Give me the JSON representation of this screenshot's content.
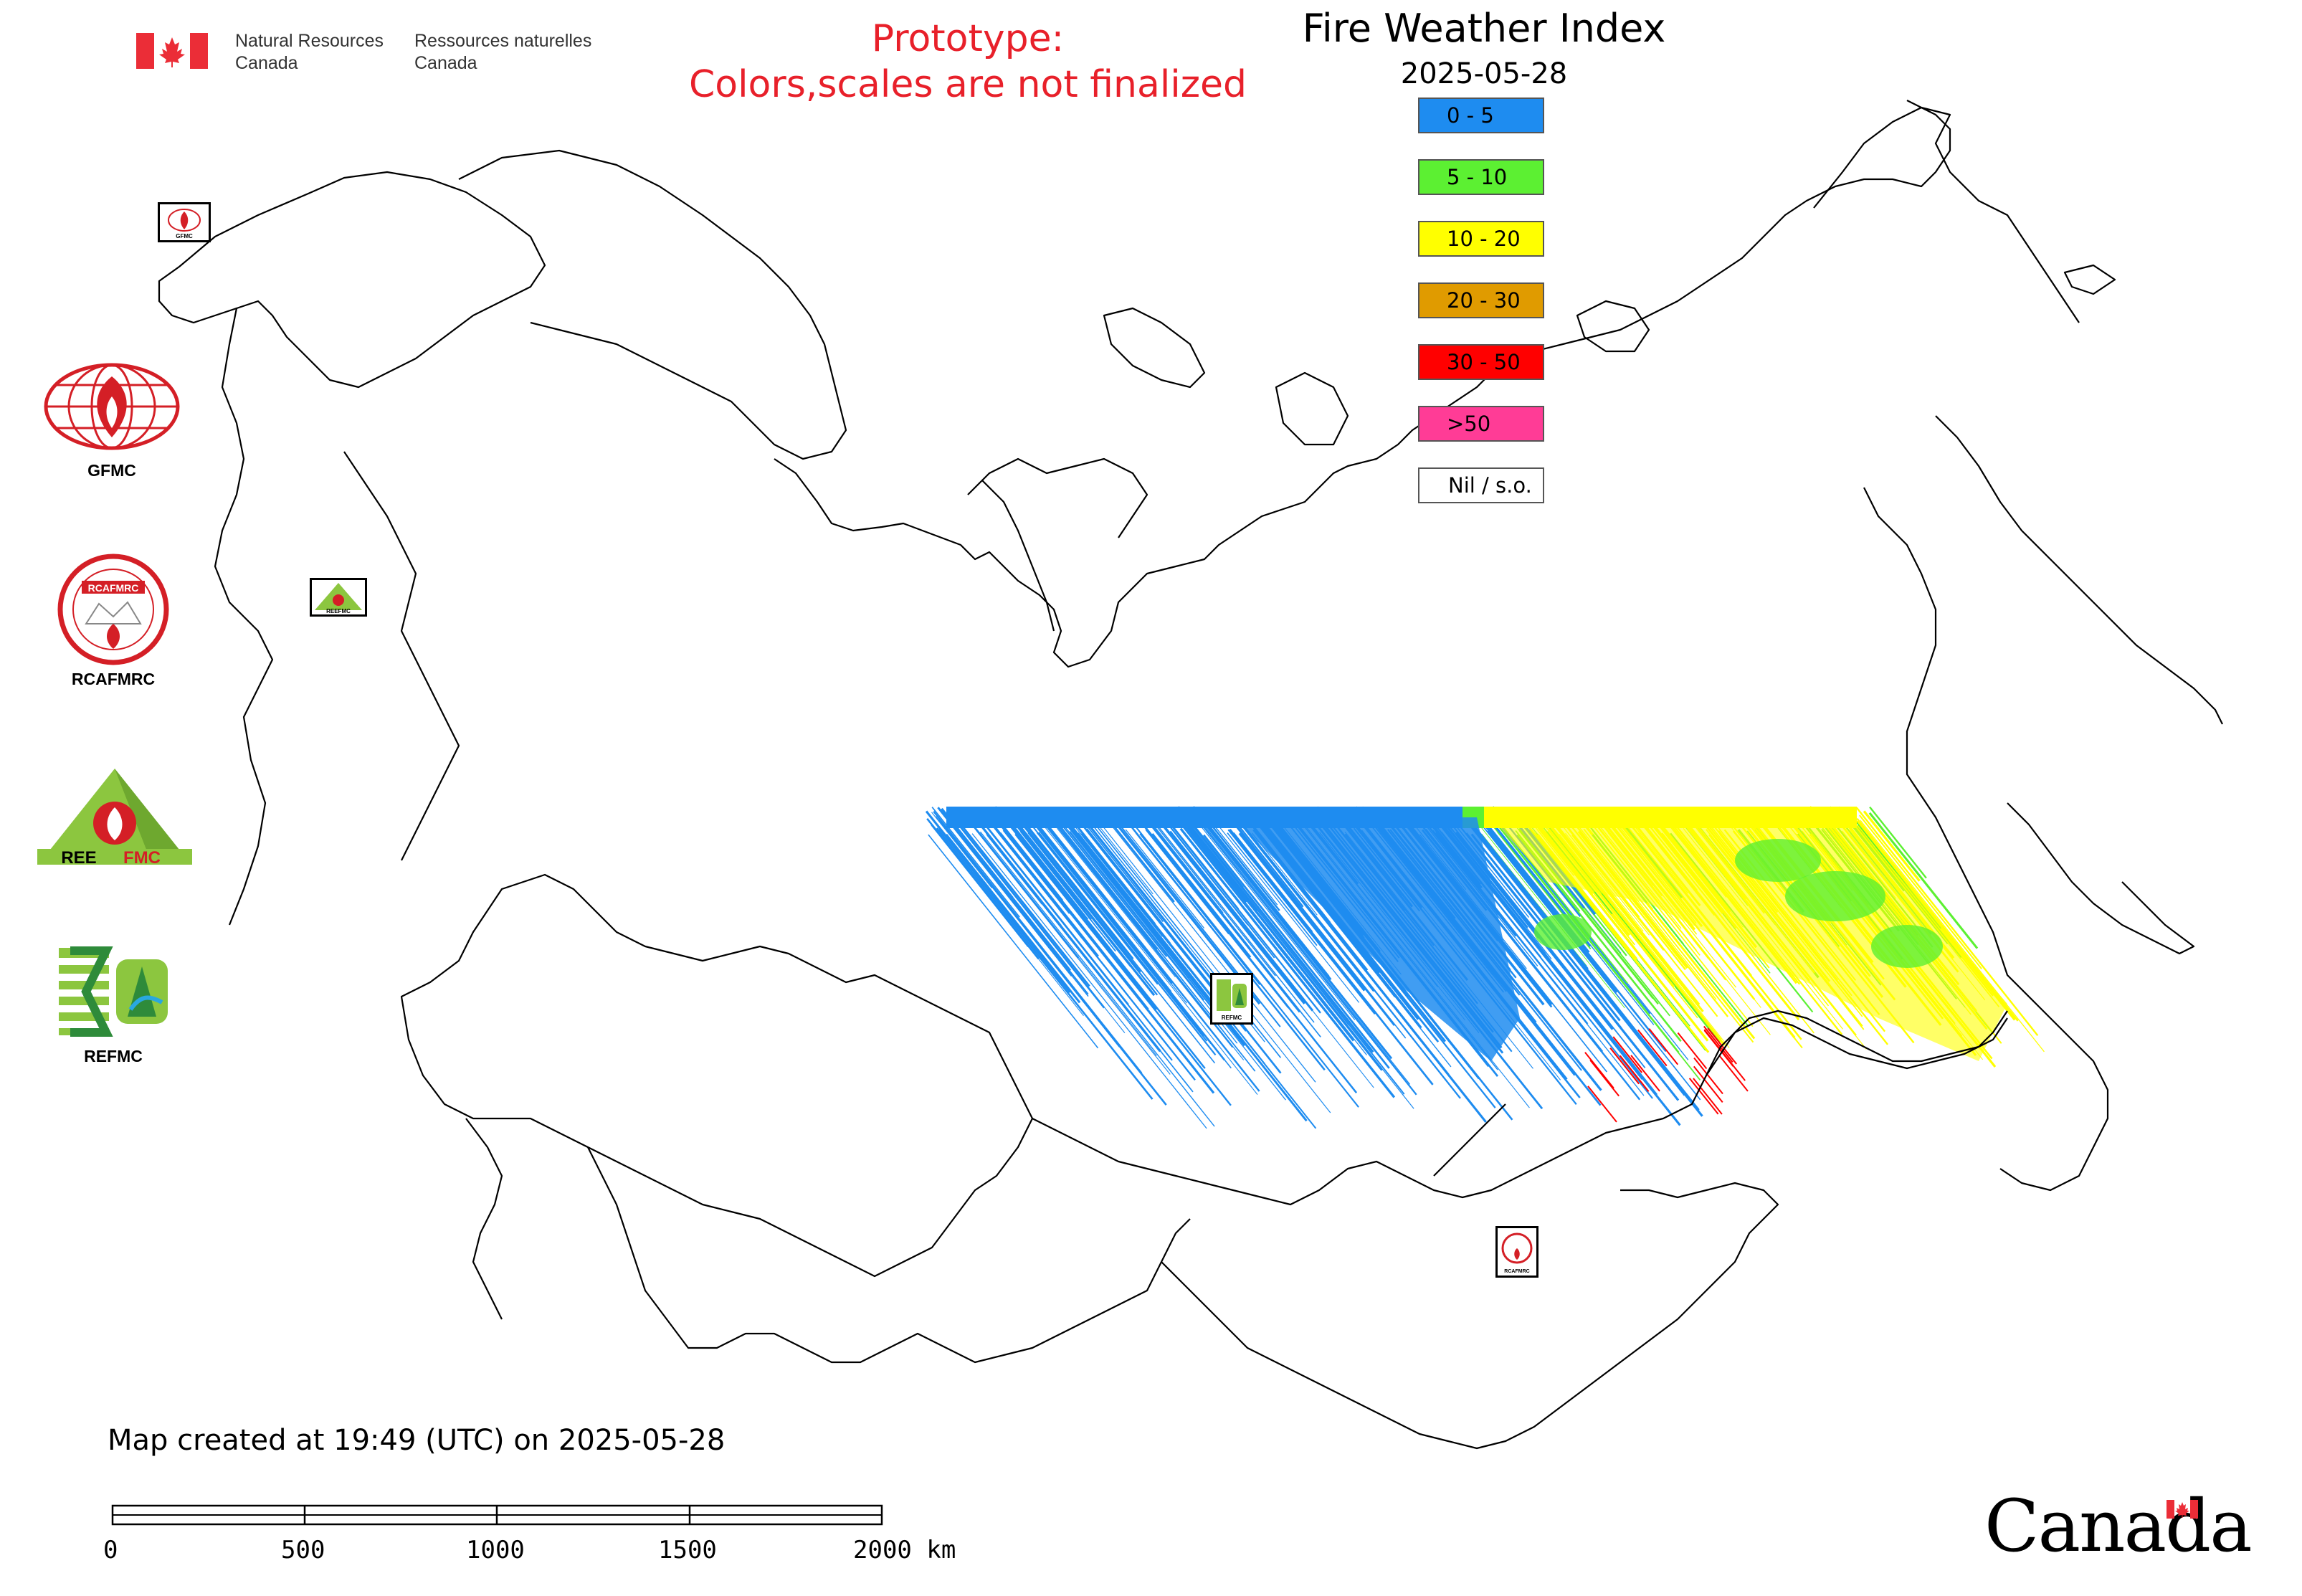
{
  "header": {
    "org_en_line1": "Natural Resources",
    "org_en_line2": "Canada",
    "org_fr_line1": "Ressources naturelles",
    "org_fr_line2": "Canada",
    "prototype_line1": "Prototype:",
    "prototype_line2": "Colors,scales are not finalized"
  },
  "legend": {
    "title": "Fire Weather Index",
    "date": "2025-05-28",
    "classes": [
      {
        "label": "0 - 5",
        "color": "#1e8cf0"
      },
      {
        "label": "5 - 10",
        "color": "#5cf032"
      },
      {
        "label": "10 - 20",
        "color": "#ffff00"
      },
      {
        "label": "20 - 30",
        "color": "#e09b00"
      },
      {
        "label": "30 - 50",
        "color": "#ff0000"
      },
      {
        "label": ">50",
        "color": "#ff3c96"
      },
      {
        "label": "Nil / s.o.",
        "color": "#ffffff"
      }
    ]
  },
  "logos": [
    {
      "name": "GFMC",
      "label": "GFMC"
    },
    {
      "name": "RCAFMRC",
      "label": "RCAFMRC"
    },
    {
      "name": "REEFMC",
      "label": "REEFMC"
    },
    {
      "name": "REFMC",
      "label": "REFMC"
    }
  ],
  "footer": {
    "created": "Map created at 19:49 (UTC) on 2025-05-28",
    "scale_ticks": [
      "0",
      "500",
      "1000",
      "1500",
      "2000 km"
    ],
    "wordmark": "Canada"
  },
  "colors": {
    "border": "#000000",
    "prototype_text": "#e8202a",
    "flag_red": "#eb2d37"
  }
}
